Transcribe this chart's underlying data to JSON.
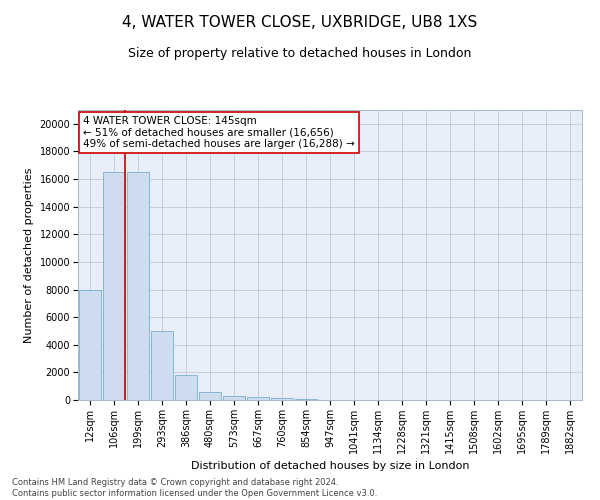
{
  "title": "4, WATER TOWER CLOSE, UXBRIDGE, UB8 1XS",
  "subtitle": "Size of property relative to detached houses in London",
  "xlabel": "Distribution of detached houses by size in London",
  "ylabel": "Number of detached properties",
  "categories": [
    "12sqm",
    "106sqm",
    "199sqm",
    "293sqm",
    "386sqm",
    "480sqm",
    "573sqm",
    "667sqm",
    "760sqm",
    "854sqm",
    "947sqm",
    "1041sqm",
    "1134sqm",
    "1228sqm",
    "1321sqm",
    "1415sqm",
    "1508sqm",
    "1602sqm",
    "1695sqm",
    "1789sqm",
    "1882sqm"
  ],
  "values": [
    8000,
    16500,
    16500,
    5000,
    1800,
    550,
    270,
    190,
    140,
    75,
    25,
    8,
    4,
    1,
    0,
    0,
    0,
    0,
    0,
    0,
    0
  ],
  "bar_color": "#cddcee",
  "bar_edge_color": "#7aaed0",
  "vline_x": 1.45,
  "vline_color": "#cc0000",
  "ylim": [
    0,
    21000
  ],
  "yticks": [
    0,
    2000,
    4000,
    6000,
    8000,
    10000,
    12000,
    14000,
    16000,
    18000,
    20000
  ],
  "annotation_title": "4 WATER TOWER CLOSE: 145sqm",
  "annotation_line2": "← 51% of detached houses are smaller (16,656)",
  "annotation_line3": "49% of semi-detached houses are larger (16,288) →",
  "annotation_box_color": "#ffffff",
  "annotation_box_edge": "#cc0000",
  "footer_line1": "Contains HM Land Registry data © Crown copyright and database right 2024.",
  "footer_line2": "Contains public sector information licensed under the Open Government Licence v3.0.",
  "bg_color": "#ffffff",
  "plot_bg_color": "#e8eef8",
  "grid_color": "#c0c8d8",
  "title_fontsize": 11,
  "subtitle_fontsize": 9,
  "tick_fontsize": 7,
  "ylabel_fontsize": 8,
  "xlabel_fontsize": 8,
  "annotation_fontsize": 7.5,
  "footer_fontsize": 6
}
